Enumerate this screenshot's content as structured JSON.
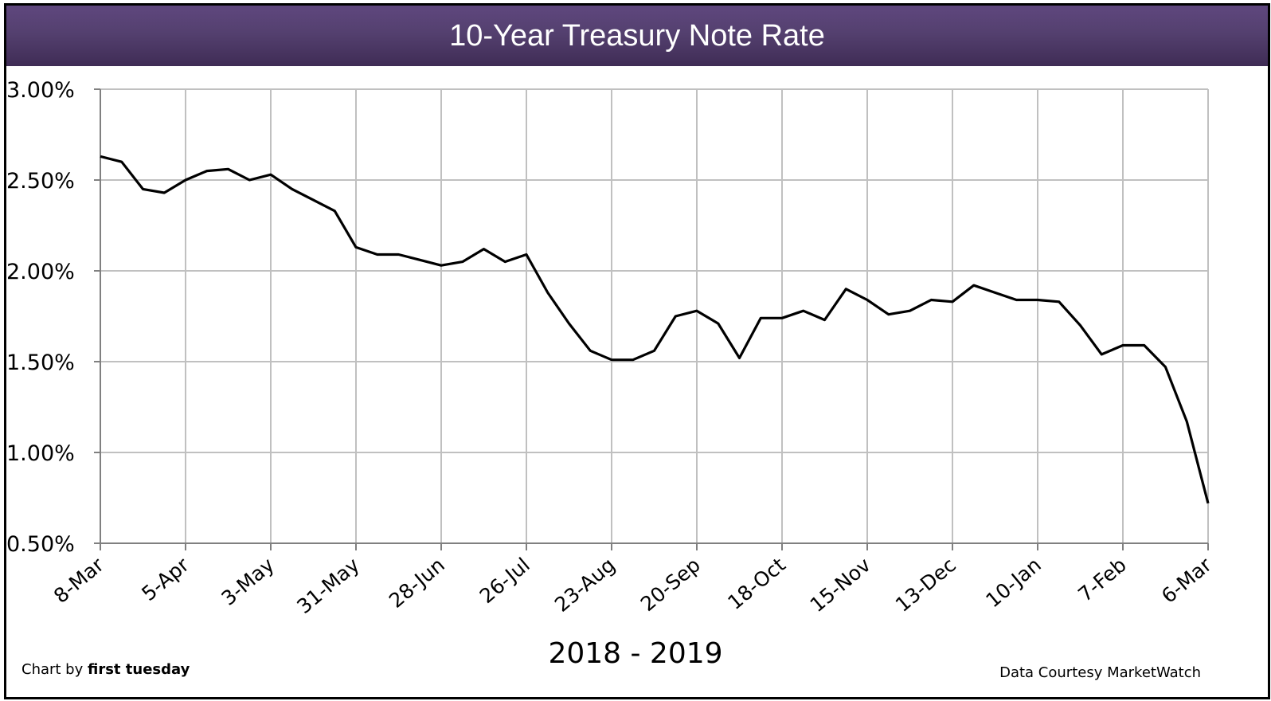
{
  "title": "10-Year Treasury Note Rate",
  "xlabel": "2018 - 2019",
  "credit_left_prefix": "Chart by",
  "credit_left_brand": "first tuesday",
  "credit_right": "Data Courtesy MarketWatch",
  "colors": {
    "header_top": "#5f477e",
    "header_bottom": "#3f2c55",
    "line": "#000000",
    "grid": "#c0c0c0"
  },
  "chart_data": {
    "type": "line",
    "title": "10-Year Treasury Note Rate",
    "xlabel": "2018 - 2019",
    "ylabel": "",
    "ylim": [
      0.5,
      3.0
    ],
    "y_ticks": [
      "0.50%",
      "1.00%",
      "1.50%",
      "2.00%",
      "2.50%",
      "3.00%"
    ],
    "x_tick_labels": [
      "8-Mar",
      "5-Apr",
      "3-May",
      "31-May",
      "28-Jun",
      "26-Jul",
      "23-Aug",
      "20-Sep",
      "18-Oct",
      "15-Nov",
      "13-Dec",
      "10-Jan",
      "7-Feb",
      "6-Mar"
    ],
    "grid": true,
    "legend": null,
    "series": [
      {
        "name": "10-Year Treasury Note Rate (%)",
        "values": [
          2.63,
          2.6,
          2.45,
          2.43,
          2.5,
          2.55,
          2.56,
          2.5,
          2.53,
          2.45,
          2.39,
          2.33,
          2.13,
          2.09,
          2.09,
          2.06,
          2.03,
          2.05,
          2.12,
          2.05,
          2.09,
          1.88,
          1.71,
          1.56,
          1.51,
          1.51,
          1.56,
          1.75,
          1.78,
          1.71,
          1.52,
          1.74,
          1.74,
          1.78,
          1.73,
          1.9,
          1.84,
          1.76,
          1.78,
          1.84,
          1.83,
          1.92,
          1.88,
          1.84,
          1.84,
          1.83,
          1.7,
          1.54,
          1.59,
          1.59,
          1.47,
          1.17,
          0.72
        ]
      }
    ]
  }
}
